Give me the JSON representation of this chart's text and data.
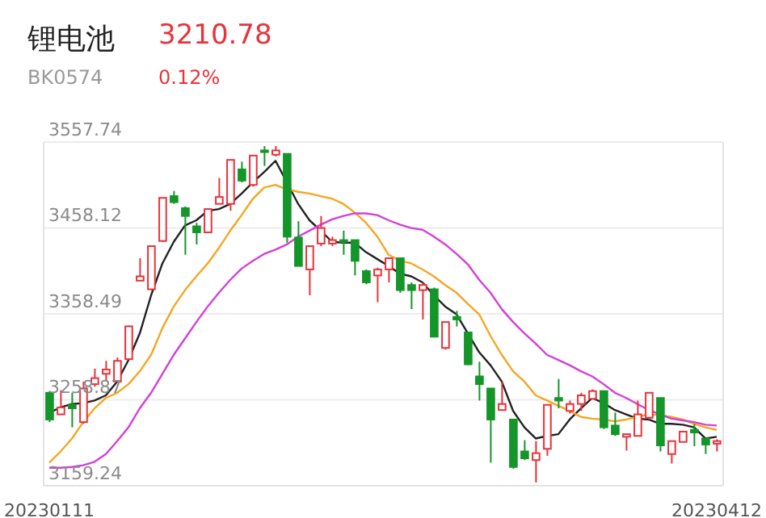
{
  "chart_data": {
    "type": "candlestick",
    "title": "锂电池",
    "subtitle": "BK0574",
    "annotations": [
      "3210.78",
      "0.12%"
    ],
    "categories": [
      "20230111",
      null,
      null,
      null,
      null,
      null,
      null,
      null,
      null,
      null,
      null,
      null,
      null,
      null,
      null,
      null,
      null,
      null,
      null,
      null,
      null,
      null,
      null,
      null,
      null,
      null,
      null,
      null,
      null,
      null,
      null,
      null,
      null,
      null,
      null,
      null,
      null,
      null,
      null,
      null,
      null,
      null,
      null,
      null,
      null,
      null,
      null,
      null,
      null,
      null,
      null,
      null,
      null,
      null,
      null,
      null,
      null,
      null,
      null,
      "20230412"
    ],
    "ohlc": [
      [
        3267,
        3269,
        3233,
        3236
      ],
      [
        3242,
        3270,
        3242,
        3250
      ],
      [
        3253,
        3267,
        3227,
        3249
      ],
      [
        3233,
        3280,
        3231,
        3272
      ],
      [
        3277,
        3295,
        3274,
        3284
      ],
      [
        3289,
        3304,
        3280,
        3294
      ],
      [
        3280,
        3308,
        3280,
        3304
      ],
      [
        3306,
        3345,
        3305,
        3344
      ],
      [
        3397,
        3423,
        3397,
        3402
      ],
      [
        3387,
        3437,
        3386,
        3437
      ],
      [
        3443,
        3493,
        3442,
        3493
      ],
      [
        3495,
        3501,
        3486,
        3488
      ],
      [
        3481,
        3483,
        3427,
        3472
      ],
      [
        3460,
        3464,
        3439,
        3453
      ],
      [
        3453,
        3481,
        3452,
        3480
      ],
      [
        3486,
        3516,
        3486,
        3494
      ],
      [
        3486,
        3537,
        3478,
        3537
      ],
      [
        3526,
        3535,
        3511,
        3513
      ],
      [
        3508,
        3542,
        3506,
        3542
      ],
      [
        3548,
        3553,
        3530,
        3546
      ],
      [
        3543,
        3553,
        3541,
        3548
      ],
      [
        3544,
        3544,
        3441,
        3448
      ],
      [
        3447,
        3466,
        3414,
        3414
      ],
      [
        3410,
        3437,
        3380,
        3437
      ],
      [
        3440,
        3472,
        3437,
        3458
      ],
      [
        3440,
        3448,
        3437,
        3444
      ],
      [
        3444,
        3455,
        3427,
        3442
      ],
      [
        3444,
        3444,
        3403,
        3420
      ],
      [
        3408,
        3410,
        3393,
        3395
      ],
      [
        3403,
        3412,
        3372,
        3410
      ],
      [
        3410,
        3423,
        3395,
        3423
      ],
      [
        3423,
        3423,
        3383,
        3386
      ],
      [
        3392,
        3395,
        3364,
        3386
      ],
      [
        3386,
        3395,
        3352,
        3392
      ],
      [
        3387,
        3389,
        3332,
        3332
      ],
      [
        3319,
        3349,
        3317,
        3349
      ],
      [
        3355,
        3362,
        3344,
        3352
      ],
      [
        3337,
        3337,
        3299,
        3300
      ],
      [
        3286,
        3303,
        3258,
        3277
      ],
      [
        3272,
        3272,
        3186,
        3236
      ],
      [
        3247,
        3280,
        3247,
        3254
      ],
      [
        3236,
        3236,
        3179,
        3181
      ],
      [
        3199,
        3212,
        3189,
        3191
      ],
      [
        3189,
        3211,
        3163,
        3197
      ],
      [
        3202,
        3253,
        3194,
        3253
      ],
      [
        3261,
        3283,
        3249,
        3258
      ],
      [
        3246,
        3258,
        3243,
        3254
      ],
      [
        3254,
        3267,
        3246,
        3264
      ],
      [
        3260,
        3271,
        3260,
        3269
      ],
      [
        3269,
        3269,
        3225,
        3227
      ],
      [
        3229,
        3244,
        3217,
        3219
      ],
      [
        3216,
        3219,
        3200,
        3219
      ],
      [
        3217,
        3258,
        3217,
        3242
      ],
      [
        3238,
        3267,
        3236,
        3267
      ],
      [
        3261,
        3261,
        3199,
        3206
      ],
      [
        3196,
        3211,
        3185,
        3211
      ],
      [
        3210,
        3222,
        3210,
        3222
      ],
      [
        3224,
        3231,
        3205,
        3221
      ],
      [
        3214,
        3214,
        3196,
        3207
      ],
      [
        3208,
        3213,
        3199,
        3211
      ]
    ],
    "series": [
      {
        "type": "line",
        "color": "#222222",
        "values": [
          3244,
          3250,
          3254,
          3255,
          3258,
          3264,
          3280,
          3305,
          3336,
          3380,
          3417,
          3442,
          3461,
          3467,
          3478,
          3480,
          3486,
          3498,
          3511,
          3523,
          3536,
          3511,
          3486,
          3467,
          3455,
          3442,
          3441,
          3441,
          3430,
          3422,
          3414,
          3405,
          3402,
          3395,
          3380,
          3367,
          3358,
          3336,
          3314,
          3299,
          3280,
          3246,
          3227,
          3214,
          3217,
          3219,
          3236,
          3249,
          3261,
          3255,
          3247,
          3242,
          3237,
          3236,
          3231,
          3231,
          3230,
          3227,
          3214,
          3216
        ]
      },
      {
        "type": "line",
        "color": "#f5a623",
        "values": [
          3186,
          3199,
          3214,
          3233,
          3249,
          3261,
          3267,
          3277,
          3292,
          3311,
          3342,
          3367,
          3386,
          3402,
          3417,
          3435,
          3455,
          3473,
          3492,
          3505,
          3508,
          3503,
          3500,
          3498,
          3495,
          3492,
          3486,
          3476,
          3464,
          3448,
          3427,
          3420,
          3417,
          3410,
          3402,
          3392,
          3383,
          3370,
          3358,
          3333,
          3311,
          3292,
          3280,
          3264,
          3258,
          3252,
          3246,
          3239,
          3237,
          3236,
          3234,
          3236,
          3239,
          3242,
          3241,
          3239,
          3236,
          3231,
          3227,
          3224
        ]
      },
      {
        "type": "line",
        "color": "#d43fd9",
        "values": [
          3180,
          3180,
          3181,
          3183,
          3187,
          3196,
          3211,
          3227,
          3249,
          3267,
          3289,
          3311,
          3330,
          3349,
          3367,
          3383,
          3398,
          3411,
          3420,
          3428,
          3433,
          3439,
          3448,
          3455,
          3462,
          3468,
          3472,
          3475,
          3475,
          3473,
          3467,
          3462,
          3458,
          3456,
          3448,
          3439,
          3428,
          3416,
          3398,
          3383,
          3364,
          3349,
          3336,
          3324,
          3311,
          3305,
          3299,
          3292,
          3286,
          3277,
          3267,
          3261,
          3254,
          3247,
          3242,
          3237,
          3235,
          3233,
          3230,
          3229
        ]
      }
    ],
    "ylim": [
      3159.24,
      3557.74
    ],
    "yticks": [
      3159.24,
      3258.87,
      3358.49,
      3458.12,
      3557.74
    ],
    "grid": "y",
    "marker": "none",
    "line_style": "solid"
  }
}
